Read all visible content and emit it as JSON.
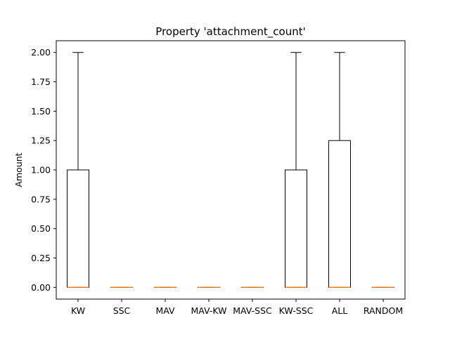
{
  "chart_data": {
    "type": "boxplot",
    "title": "Property 'attachment_count'",
    "xlabel": "",
    "ylabel": "Amount",
    "ylim": [
      -0.1,
      2.1
    ],
    "yticks": [
      "0.00",
      "0.25",
      "0.50",
      "0.75",
      "1.00",
      "1.25",
      "1.50",
      "1.75",
      "2.00"
    ],
    "categories": [
      "KW",
      "SSC",
      "MAV",
      "MAV-KW",
      "MAV-SSC",
      "KW-SSC",
      "ALL",
      "RANDOM"
    ],
    "boxes": [
      {
        "category": "KW",
        "whisker_low": 0,
        "q1": 0,
        "median": 0,
        "q3": 1.0,
        "whisker_high": 2.0
      },
      {
        "category": "SSC",
        "whisker_low": 0,
        "q1": 0,
        "median": 0,
        "q3": 0,
        "whisker_high": 0
      },
      {
        "category": "MAV",
        "whisker_low": 0,
        "q1": 0,
        "median": 0,
        "q3": 0,
        "whisker_high": 0
      },
      {
        "category": "MAV-KW",
        "whisker_low": 0,
        "q1": 0,
        "median": 0,
        "q3": 0,
        "whisker_high": 0
      },
      {
        "category": "MAV-SSC",
        "whisker_low": 0,
        "q1": 0,
        "median": 0,
        "q3": 0,
        "whisker_high": 0
      },
      {
        "category": "KW-SSC",
        "whisker_low": 0,
        "q1": 0,
        "median": 0,
        "q3": 1.0,
        "whisker_high": 2.0
      },
      {
        "category": "ALL",
        "whisker_low": 0,
        "q1": 0,
        "median": 0,
        "q3": 1.25,
        "whisker_high": 2.0
      },
      {
        "category": "RANDOM",
        "whisker_low": 0,
        "q1": 0,
        "median": 0,
        "q3": 0,
        "whisker_high": 0
      }
    ],
    "grid": false,
    "colors": {
      "box": "#000000",
      "median": "#ff7f0e"
    }
  }
}
